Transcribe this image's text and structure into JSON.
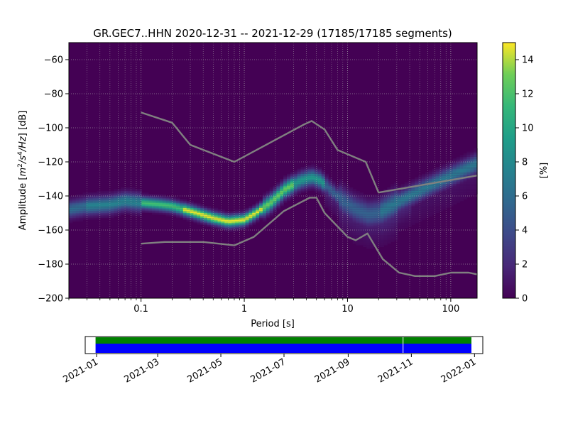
{
  "chart_data": [
    {
      "type": "heatmap",
      "title": "GR.GEC7..HHN   2020-12-31 -- 2021-12-29  (17185/17185 segments)",
      "xlabel": "Period [s]",
      "ylabel_parts": [
        "Amplitude [",
        "m",
        "2",
        "/",
        "s",
        "4",
        "/",
        "Hz",
        "] [dB]"
      ],
      "x_scale": "log",
      "xlim": [
        0.02,
        180
      ],
      "ylim": [
        -200,
        -50
      ],
      "x_ticks": [
        {
          "value": 0.1,
          "label": "0.1"
        },
        {
          "value": 1,
          "label": "1"
        },
        {
          "value": 10,
          "label": "10"
        },
        {
          "value": 100,
          "label": "100"
        }
      ],
      "y_ticks": [
        {
          "value": -60,
          "label": "−60"
        },
        {
          "value": -80,
          "label": "−80"
        },
        {
          "value": -100,
          "label": "−100"
        },
        {
          "value": -120,
          "label": "−120"
        },
        {
          "value": -140,
          "label": "−140"
        },
        {
          "value": -160,
          "label": "−160"
        },
        {
          "value": -180,
          "label": "−180"
        },
        {
          "value": -200,
          "label": "−200"
        }
      ],
      "grid": true,
      "colormap": "viridis",
      "colorbar": {
        "label": "[%]",
        "range": [
          0,
          15
        ],
        "ticks": [
          {
            "value": 0,
            "label": "0"
          },
          {
            "value": 2,
            "label": "2"
          },
          {
            "value": 4,
            "label": "4"
          },
          {
            "value": 6,
            "label": "6"
          },
          {
            "value": 8,
            "label": "8"
          },
          {
            "value": 10,
            "label": "10"
          },
          {
            "value": 12,
            "label": "12"
          },
          {
            "value": 14,
            "label": "14"
          }
        ]
      },
      "mode_curve": [
        [
          0.02,
          -148
        ],
        [
          0.03,
          -146
        ],
        [
          0.05,
          -145
        ],
        [
          0.07,
          -143
        ],
        [
          0.1,
          -144
        ],
        [
          0.15,
          -145
        ],
        [
          0.2,
          -146
        ],
        [
          0.3,
          -149
        ],
        [
          0.5,
          -153
        ],
        [
          0.7,
          -155
        ],
        [
          1.0,
          -154
        ],
        [
          1.3,
          -150
        ],
        [
          1.8,
          -144
        ],
        [
          2.5,
          -136
        ],
        [
          3.5,
          -131
        ],
        [
          4.5,
          -129
        ],
        [
          5.5,
          -131
        ],
        [
          7,
          -137
        ],
        [
          9,
          -143
        ],
        [
          12,
          -148
        ],
        [
          16,
          -151
        ],
        [
          20,
          -150
        ],
        [
          30,
          -144
        ],
        [
          50,
          -137
        ],
        [
          80,
          -131
        ],
        [
          120,
          -126
        ],
        [
          180,
          -121
        ]
      ],
      "series": [
        {
          "points": [
            [
              0.1,
              -91
            ],
            [
              0.2,
              -97
            ],
            [
              0.3,
              -110
            ],
            [
              0.8,
              -120
            ],
            [
              3.8,
              -98
            ],
            [
              4.5,
              -96
            ],
            [
              6.0,
              -101
            ],
            [
              8,
              -113
            ],
            [
              15,
              -120
            ],
            [
              20,
              -138
            ],
            [
              180,
              -128
            ]
          ]
        },
        {
          "points": [
            [
              0.1,
              -168
            ],
            [
              0.17,
              -167
            ],
            [
              0.4,
              -167
            ],
            [
              0.8,
              -169
            ],
            [
              1.24,
              -164
            ],
            [
              2.4,
              -149
            ],
            [
              4.3,
              -141
            ],
            [
              5.0,
              -141
            ],
            [
              6,
              -150
            ],
            [
              10,
              -164
            ],
            [
              12,
              -166
            ],
            [
              15.6,
              -162
            ],
            [
              21.9,
              -177
            ],
            [
              31.6,
              -185
            ],
            [
              45,
              -187
            ],
            [
              70,
              -187
            ],
            [
              101,
              -185
            ],
            [
              149,
              -185
            ],
            [
              180,
              -186
            ]
          ]
        }
      ]
    },
    {
      "type": "timeline",
      "x_ticks": [
        "2021-01",
        "2021-03",
        "2021-05",
        "2021-07",
        "2021-09",
        "2021-11",
        "2022-01"
      ],
      "xlim": [
        "2020-12-21",
        "2022-01-09"
      ],
      "coverage": {
        "start": "2020-12-31",
        "end": "2021-12-29",
        "gap": "2021-10-24"
      },
      "colors": {
        "data": "#0000ff",
        "gaps": "#008000"
      }
    }
  ]
}
